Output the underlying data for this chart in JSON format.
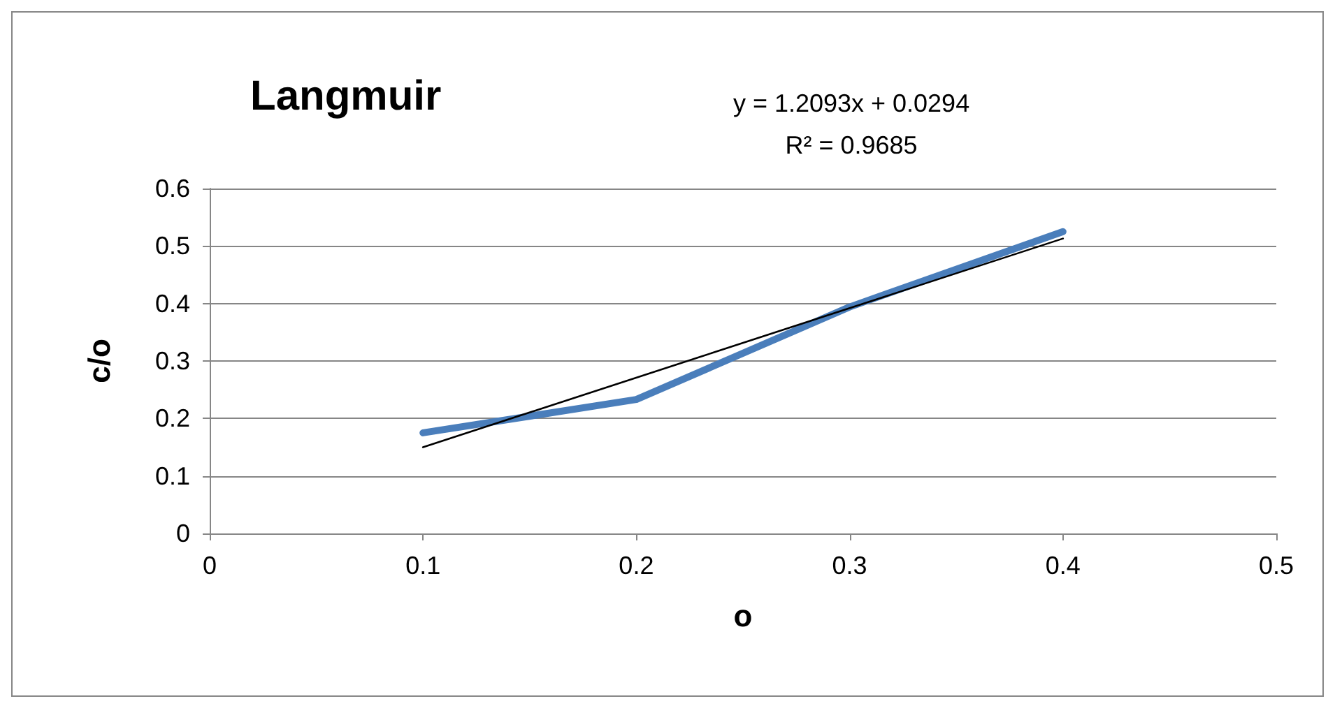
{
  "chart_data": {
    "type": "line",
    "title": "Langmuir",
    "xlabel": "o",
    "ylabel": "c/o",
    "annotations": [
      "y = 1.2093x + 0.0294",
      "R² = 0.9685"
    ],
    "x": [
      0.1,
      0.2,
      0.3,
      0.4
    ],
    "series": [
      {
        "color": "#4a7ebb",
        "values": [
          0.175,
          0.233,
          0.394,
          0.525
        ]
      },
      {
        "type": "line",
        "color": "#000000",
        "x": [
          0.1,
          0.4
        ],
        "values": [
          0.15,
          0.513
        ]
      }
    ],
    "xlim": [
      0,
      0.5
    ],
    "xticks": [
      0,
      0.1,
      0.2,
      0.3,
      0.4,
      0.5
    ],
    "ylim": [
      0,
      0.6
    ],
    "yticks": [
      0,
      0.1,
      0.2,
      0.3,
      0.4,
      0.5,
      0.6
    ],
    "grid": "y",
    "marker": "none",
    "line_style": "solid"
  }
}
